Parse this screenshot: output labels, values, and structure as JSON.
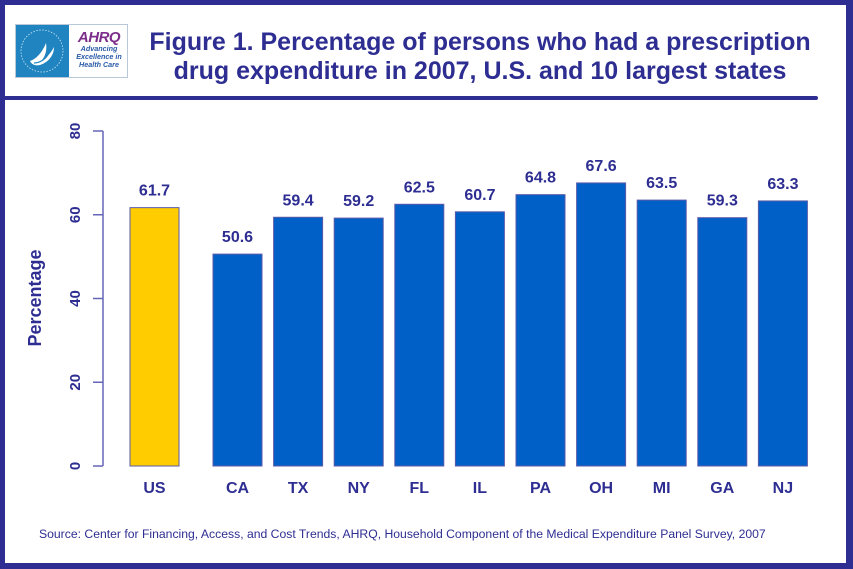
{
  "logo": {
    "hhs_label": "HHS seal",
    "brand": "AHRQ",
    "tagline": [
      "Advancing",
      "Excellence in",
      "Health Care"
    ]
  },
  "title_lines": [
    "Figure 1. Percentage of persons who had a prescription",
    "drug expenditure in 2007, U.S. and 10 largest states"
  ],
  "source": "Source: Center for Financing, Access, and Cost Trends, AHRQ, Household Component of the Medical Expenditure Panel Survey, 2007",
  "colors": {
    "frame": "#2e2e92",
    "text": "#2e2e92",
    "us_bar": "#ffcc00",
    "state_bar": "#0060c8",
    "bar_edge": "#5a5aa8"
  },
  "chart_data": {
    "type": "bar",
    "title": "Figure 1. Percentage of persons who had a prescription drug expenditure in 2007, U.S. and 10 largest states",
    "xlabel": "",
    "ylabel": "Percentage",
    "ylim": [
      0,
      80
    ],
    "yticks": [
      0,
      20,
      40,
      60,
      80
    ],
    "grid": false,
    "legend": "none",
    "categories": [
      "US",
      "CA",
      "TX",
      "NY",
      "FL",
      "IL",
      "PA",
      "OH",
      "MI",
      "GA",
      "NJ"
    ],
    "values": [
      61.7,
      50.6,
      59.4,
      59.2,
      62.5,
      60.7,
      64.8,
      67.6,
      63.5,
      59.3,
      63.3
    ],
    "data_labels": [
      "61.7",
      "50.6",
      "59.4",
      "59.2",
      "62.5",
      "60.7",
      "64.8",
      "67.6",
      "63.5",
      "59.3",
      "63.3"
    ],
    "highlight": [
      "US"
    ]
  }
}
